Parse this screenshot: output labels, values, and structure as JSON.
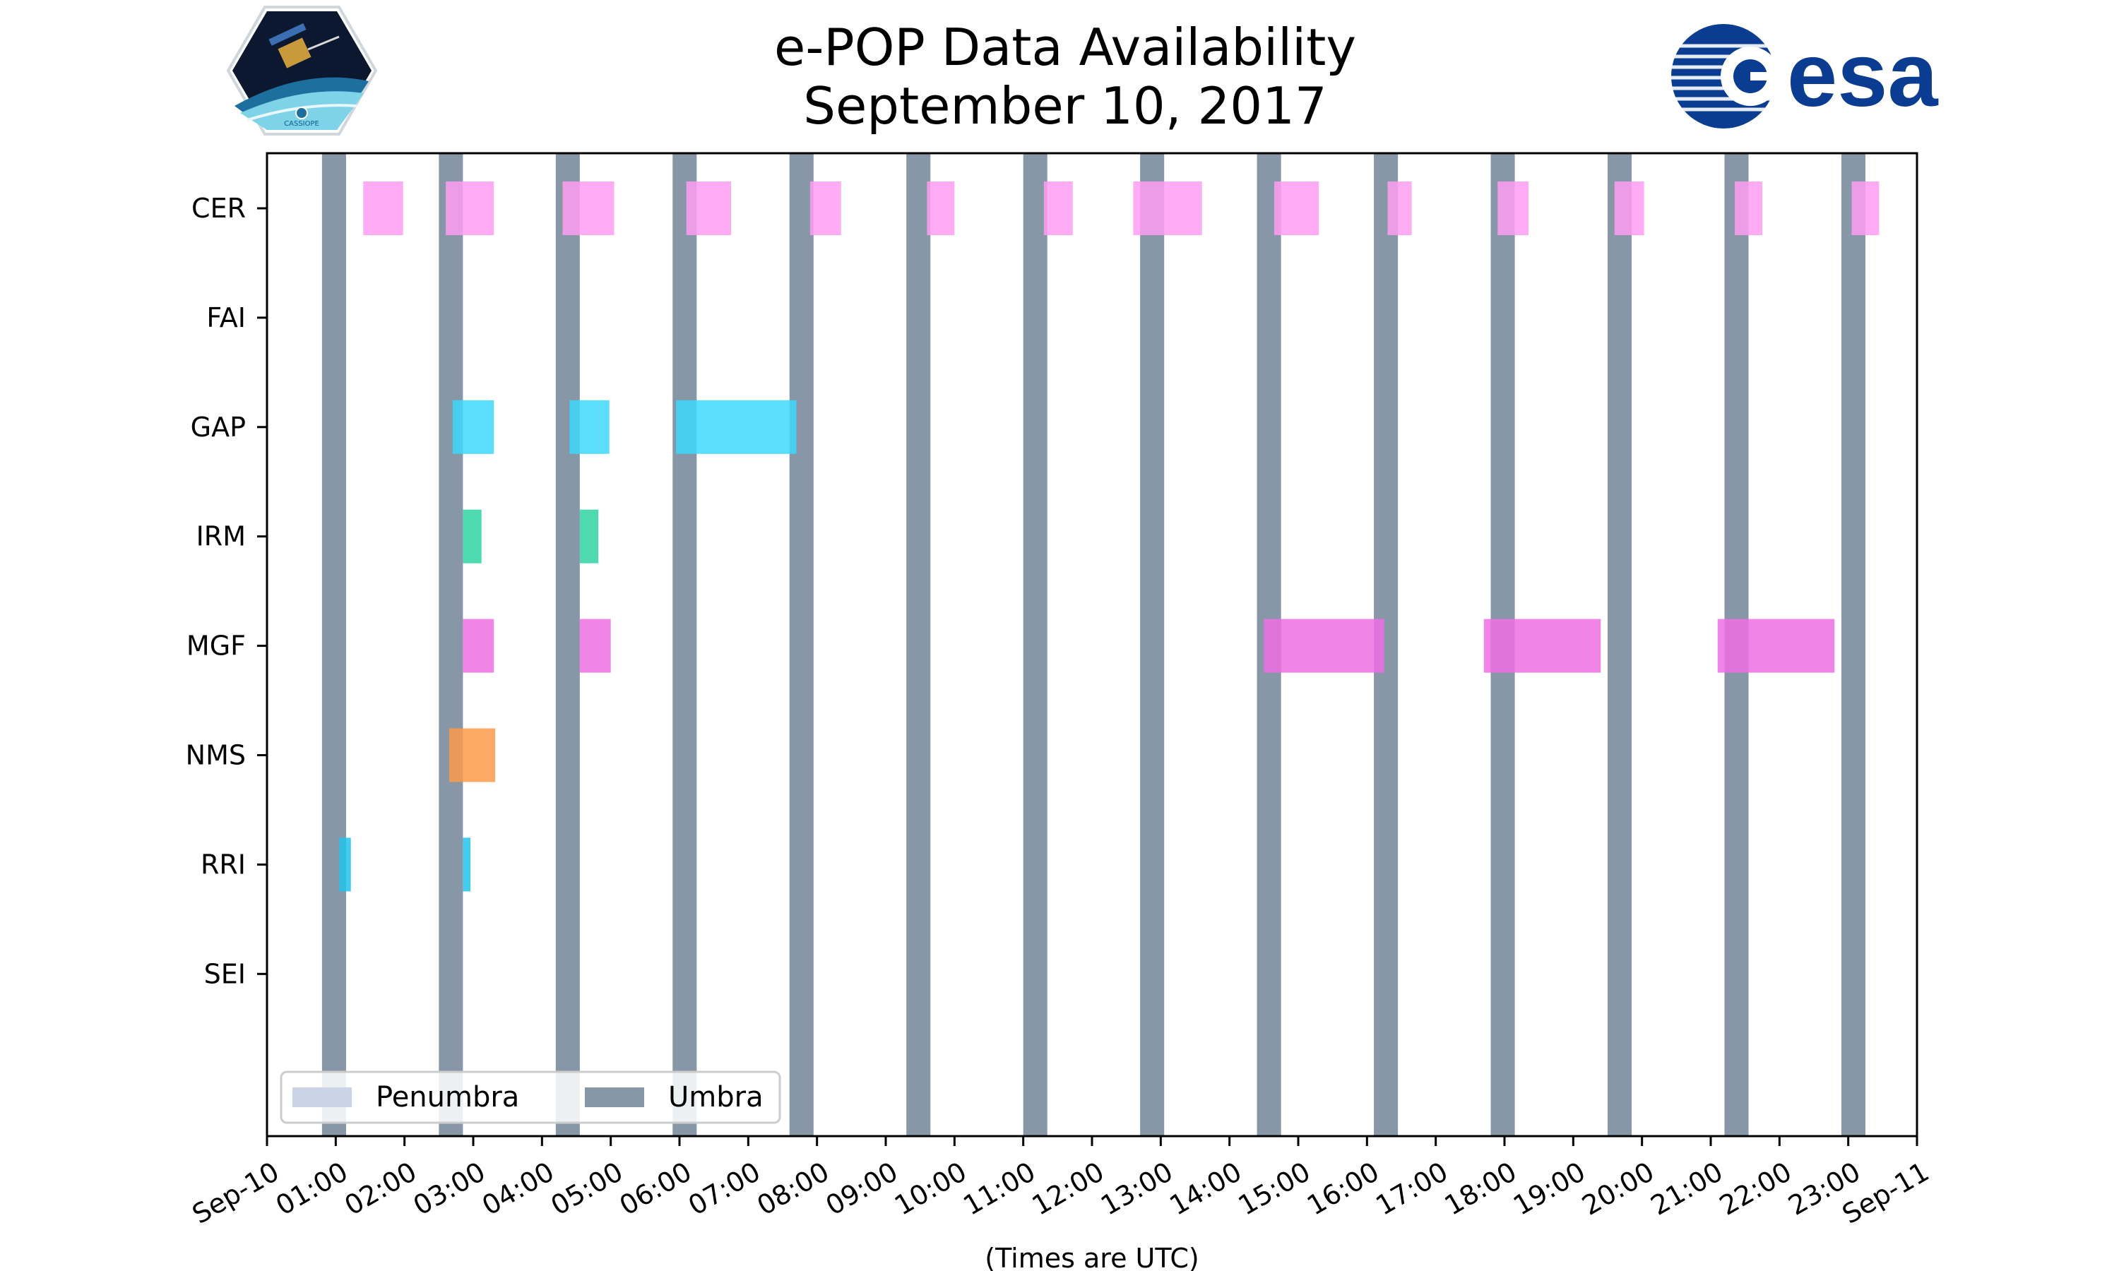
{
  "chart_data": {
    "type": "timeline",
    "title_line1": "e-POP Data Availability",
    "title_line2": "September 10, 2017",
    "xlabel": "(Times are UTC)",
    "xlim_hours": [
      0,
      24
    ],
    "x_ticks": [
      {
        "hour": 0,
        "label": "Sep-10"
      },
      {
        "hour": 1,
        "label": "01:00"
      },
      {
        "hour": 2,
        "label": "02:00"
      },
      {
        "hour": 3,
        "label": "03:00"
      },
      {
        "hour": 4,
        "label": "04:00"
      },
      {
        "hour": 5,
        "label": "05:00"
      },
      {
        "hour": 6,
        "label": "06:00"
      },
      {
        "hour": 7,
        "label": "07:00"
      },
      {
        "hour": 8,
        "label": "08:00"
      },
      {
        "hour": 9,
        "label": "09:00"
      },
      {
        "hour": 10,
        "label": "10:00"
      },
      {
        "hour": 11,
        "label": "11:00"
      },
      {
        "hour": 12,
        "label": "12:00"
      },
      {
        "hour": 13,
        "label": "13:00"
      },
      {
        "hour": 14,
        "label": "14:00"
      },
      {
        "hour": 15,
        "label": "15:00"
      },
      {
        "hour": 16,
        "label": "16:00"
      },
      {
        "hour": 17,
        "label": "17:00"
      },
      {
        "hour": 18,
        "label": "18:00"
      },
      {
        "hour": 19,
        "label": "19:00"
      },
      {
        "hour": 20,
        "label": "20:00"
      },
      {
        "hour": 21,
        "label": "21:00"
      },
      {
        "hour": 22,
        "label": "22:00"
      },
      {
        "hour": 23,
        "label": "23:00"
      },
      {
        "hour": 24,
        "label": "Sep-11"
      }
    ],
    "instruments": [
      "CER",
      "FAI",
      "GAP",
      "IRM",
      "MGF",
      "NMS",
      "RRI",
      "SEI"
    ],
    "colors": {
      "CER": "#ff9ef2",
      "GAP": "#3dd8fb",
      "IRM": "#2fd3a0",
      "MGF": "#ee6ee3",
      "NMS": "#fb9a4a",
      "RRI": "#22c3ea",
      "umbra": "#8797a8",
      "penumbra": "#c9d5e6"
    },
    "series": [
      {
        "name": "CER",
        "intervals": [
          [
            1.4,
            1.98
          ],
          [
            2.6,
            3.3
          ],
          [
            4.3,
            5.05
          ],
          [
            6.1,
            6.75
          ],
          [
            7.9,
            8.35
          ],
          [
            9.6,
            10.0
          ],
          [
            11.3,
            11.72
          ],
          [
            12.6,
            13.6
          ],
          [
            14.65,
            15.3
          ],
          [
            16.3,
            16.65
          ],
          [
            17.9,
            18.35
          ],
          [
            19.6,
            20.03
          ],
          [
            21.35,
            21.75
          ],
          [
            23.05,
            23.45
          ]
        ]
      },
      {
        "name": "FAI",
        "intervals": []
      },
      {
        "name": "GAP",
        "intervals": [
          [
            2.7,
            3.3
          ],
          [
            4.4,
            4.98
          ],
          [
            5.95,
            7.7
          ]
        ]
      },
      {
        "name": "IRM",
        "intervals": [
          [
            2.85,
            3.12
          ],
          [
            4.55,
            4.82
          ]
        ]
      },
      {
        "name": "MGF",
        "intervals": [
          [
            2.85,
            3.3
          ],
          [
            4.55,
            5.0
          ],
          [
            14.5,
            16.25
          ],
          [
            17.7,
            19.4
          ],
          [
            21.1,
            22.8
          ]
        ]
      },
      {
        "name": "NMS",
        "intervals": [
          [
            2.65,
            3.32
          ]
        ]
      },
      {
        "name": "RRI",
        "intervals": [
          [
            1.05,
            1.22
          ],
          [
            2.85,
            2.96
          ]
        ]
      },
      {
        "name": "SEI",
        "intervals": []
      }
    ],
    "umbra": [
      [
        0.8,
        1.15
      ],
      [
        2.5,
        2.85
      ],
      [
        4.2,
        4.55
      ],
      [
        5.9,
        6.25
      ],
      [
        7.6,
        7.95
      ],
      [
        9.3,
        9.65
      ],
      [
        11.0,
        11.35
      ],
      [
        12.7,
        13.05
      ],
      [
        14.4,
        14.75
      ],
      [
        16.1,
        16.45
      ],
      [
        17.8,
        18.15
      ],
      [
        19.5,
        19.85
      ],
      [
        21.2,
        21.55
      ],
      [
        22.9,
        23.25
      ]
    ],
    "penumbra": [],
    "legend": {
      "position": "lower-left",
      "entries": [
        "Penumbra",
        "Umbra"
      ]
    }
  },
  "logos": {
    "left_caption": "CASSIOPE",
    "right_text": "esa"
  }
}
